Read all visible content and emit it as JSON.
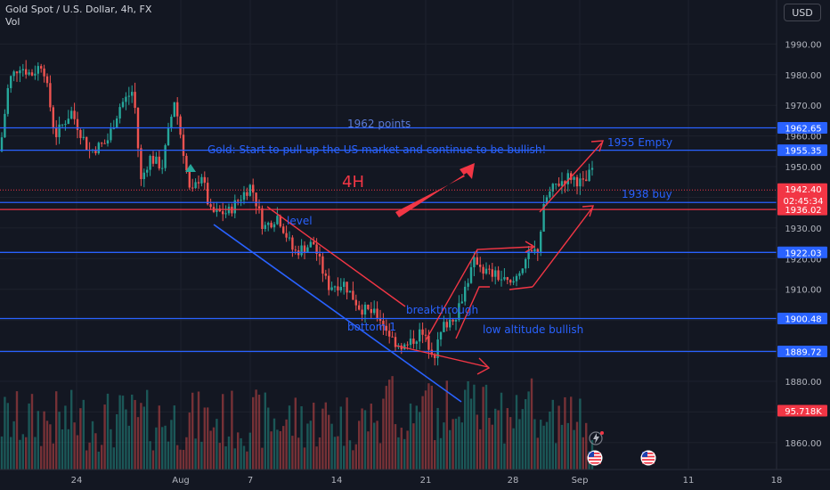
{
  "header": {
    "title": "Gold Spot / U.S. Dollar, 4h, FX",
    "indicator": "Vol"
  },
  "currency_button": "USD",
  "icons": [
    "lightning-icon",
    "us-flag-icon"
  ],
  "chart_data": {
    "type": "candlestick",
    "ylim": [
      1850,
      2000
    ],
    "y_ticks": [
      {
        "value": 1990,
        "label": "1990.00"
      },
      {
        "value": 1980,
        "label": "1980.00"
      },
      {
        "value": 1970,
        "label": "1970.00"
      },
      {
        "value": 1960,
        "label": "1960.00"
      },
      {
        "value": 1950,
        "label": "1950.00"
      },
      {
        "value": 1940,
        "label": "1940.00"
      },
      {
        "value": 1930,
        "label": "1930.00"
      },
      {
        "value": 1920,
        "label": "1920.00"
      },
      {
        "value": 1910,
        "label": "1910.00"
      },
      {
        "value": 1900,
        "label": "1900.00"
      },
      {
        "value": 1890,
        "label": "1890.00"
      },
      {
        "value": 1880,
        "label": "1880.00"
      },
      {
        "value": 1870,
        "label": "1870.00"
      },
      {
        "value": 1860,
        "label": "1860.00"
      }
    ],
    "x_ticks": [
      "24",
      "Aug",
      "7",
      "14",
      "21",
      "28",
      "Sep",
      "11",
      "18"
    ],
    "horizontal_levels": [
      {
        "value": 1962.65,
        "label": "1962.65",
        "color": "#2962ff"
      },
      {
        "value": 1955.35,
        "label": "1955.35",
        "color": "#2962ff"
      },
      {
        "value": 1938.31,
        "label": "1938.31",
        "color": "#2962ff"
      },
      {
        "value": 1936.02,
        "label": "1936.02",
        "color": "#f23645"
      },
      {
        "value": 1922.03,
        "label": "1922.03",
        "color": "#2962ff"
      },
      {
        "value": 1900.48,
        "label": "1900.48",
        "color": "#2962ff"
      },
      {
        "value": 1889.72,
        "label": "1889.72",
        "color": "#2962ff"
      }
    ],
    "last_price": {
      "value": 1942.4,
      "label": "1942.40",
      "countdown": "02:45:34",
      "color": "#f23645"
    },
    "volume_label": {
      "label": "95.718K",
      "color": "#f23645"
    },
    "annotations": [
      {
        "text": "1962 points",
        "color": "#5b7bd5"
      },
      {
        "text": "Gold: Start to pull up the US market and continue to be bullish!",
        "color": "#2962ff"
      },
      {
        "text": "1955 Empty",
        "color": "#2962ff"
      },
      {
        "text": "4H",
        "color": "#f23645"
      },
      {
        "text": "1938 buy",
        "color": "#2962ff"
      },
      {
        "text": "level",
        "color": "#2962ff"
      },
      {
        "text": "breakthrough",
        "color": "#2962ff"
      },
      {
        "text": "bottom 1",
        "color": "#2962ff"
      },
      {
        "text": "low altitude bullish",
        "color": "#2962ff"
      }
    ],
    "colors": {
      "up": "#26a69a",
      "down": "#ef5350",
      "blue": "#2962ff",
      "red": "#f23645"
    }
  }
}
